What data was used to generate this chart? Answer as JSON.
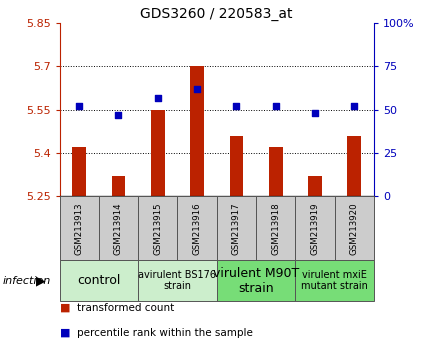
{
  "title": "GDS3260 / 220583_at",
  "samples": [
    "GSM213913",
    "GSM213914",
    "GSM213915",
    "GSM213916",
    "GSM213917",
    "GSM213918",
    "GSM213919",
    "GSM213920"
  ],
  "bar_values": [
    5.42,
    5.32,
    5.55,
    5.7,
    5.46,
    5.42,
    5.32,
    5.46
  ],
  "bar_base": 5.25,
  "percentile_values": [
    52,
    47,
    57,
    62,
    52,
    52,
    48,
    52
  ],
  "ylim_left": [
    5.25,
    5.85
  ],
  "ylim_right": [
    0,
    100
  ],
  "yticks_left": [
    5.25,
    5.4,
    5.55,
    5.7,
    5.85
  ],
  "yticks_right": [
    0,
    25,
    50,
    75,
    100
  ],
  "ytick_labels_left": [
    "5.25",
    "5.4",
    "5.55",
    "5.7",
    "5.85"
  ],
  "ytick_labels_right": [
    "0",
    "25",
    "50",
    "75",
    "100%"
  ],
  "hlines": [
    5.4,
    5.55,
    5.7
  ],
  "bar_color": "#bb2200",
  "dot_color": "#0000bb",
  "groups": [
    {
      "label": "control",
      "samples": [
        0,
        1
      ],
      "color": "#cceecc",
      "fontsize": 9
    },
    {
      "label": "avirulent BS176\nstrain",
      "samples": [
        2,
        3
      ],
      "color": "#cceecc",
      "fontsize": 7
    },
    {
      "label": "virulent M90T\nstrain",
      "samples": [
        4,
        5
      ],
      "color": "#77dd77",
      "fontsize": 9
    },
    {
      "label": "virulent mxiE\nmutant strain",
      "samples": [
        6,
        7
      ],
      "color": "#77dd77",
      "fontsize": 7
    }
  ],
  "infection_label": "infection",
  "legend_items": [
    {
      "label": "transformed count",
      "color": "#bb2200",
      "marker": "s"
    },
    {
      "label": "percentile rank within the sample",
      "color": "#0000bb",
      "marker": "s"
    }
  ],
  "bar_width": 0.35,
  "title_fontsize": 10,
  "sample_box_color": "#cccccc",
  "plot_bg": "#ffffff",
  "spine_color": "#000000"
}
